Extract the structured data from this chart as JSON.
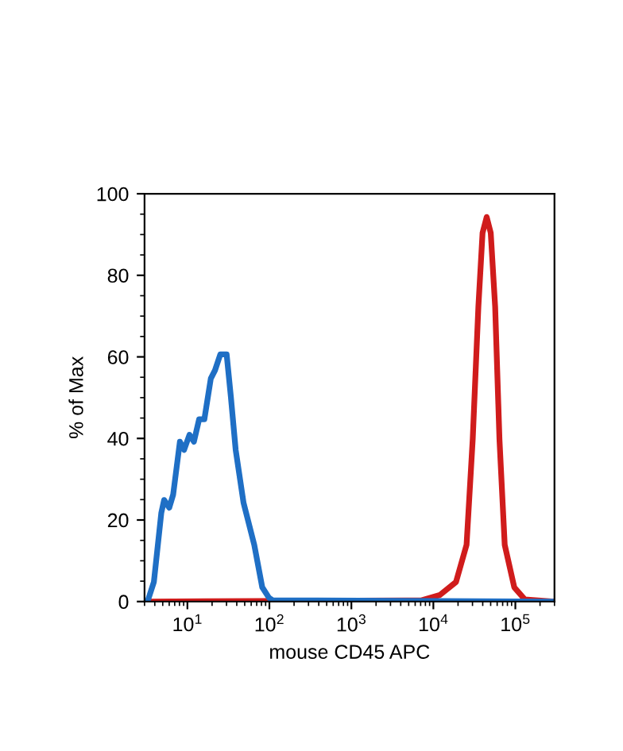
{
  "chart_data": {
    "type": "line",
    "xlabel": "mouse CD45 APC",
    "ylabel": "% of Max",
    "log": "x",
    "xlim": [
      3,
      300000
    ],
    "ylim": [
      0,
      100
    ],
    "xticks": [
      {
        "value": 10,
        "label": "10$^{1}$"
      },
      {
        "value": 100,
        "label": "10$^{2}$"
      },
      {
        "value": 1000,
        "label": "10$^{3}$"
      },
      {
        "value": 10000,
        "label": "10$^{4}$"
      },
      {
        "value": 100000,
        "label": "10$^{5}$"
      }
    ],
    "yticks": [
      0,
      20,
      40,
      60,
      80,
      100
    ],
    "grid": false,
    "legend": false,
    "marker": "none",
    "line_style": "solid",
    "series": [
      {
        "color": "#d01c1c",
        "x": [
          3,
          7150,
          12000,
          18900,
          25400,
          30200,
          35400,
          39800,
          44700,
          50100,
          56700,
          64000,
          74200,
          97000,
          130600,
          300000
        ],
        "values": [
          0,
          0.3,
          1.6,
          4.8,
          13.9,
          39.8,
          72.3,
          90.4,
          94.3,
          90.4,
          72.3,
          39.8,
          13.9,
          3.5,
          0.5,
          0
        ]
      },
      {
        "color": "#1f6fc5",
        "x": [
          3.3,
          3.9,
          4.8,
          5.2,
          6.0,
          6.7,
          8.1,
          9.1,
          10.6,
          12.0,
          13.9,
          16.1,
          19.3,
          21.7,
          25.2,
          30.1,
          33.9,
          38.8,
          48.4,
          65.4,
          81.8,
          99,
          110,
          300000
        ],
        "values": [
          0.3,
          4.8,
          21.7,
          24.9,
          23.0,
          26.2,
          39.2,
          37.2,
          40.9,
          39.2,
          44.7,
          44.7,
          54.7,
          56.7,
          60.6,
          60.6,
          50.2,
          37.2,
          24.2,
          13.9,
          3.5,
          0.9,
          0.3,
          0
        ]
      }
    ]
  }
}
